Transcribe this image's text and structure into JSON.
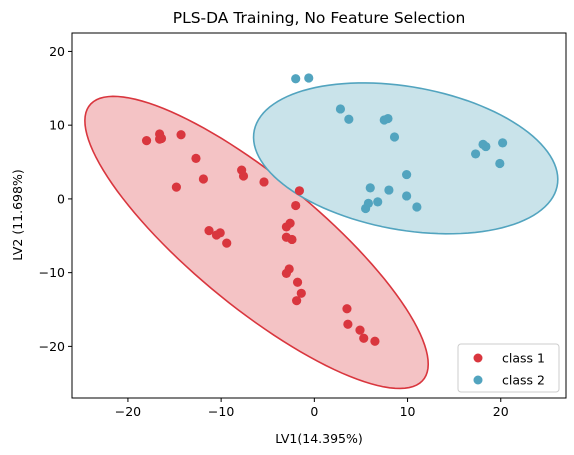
{
  "chart_data": {
    "type": "scatter",
    "title": "PLS-DA Training, No Feature Selection",
    "xlabel": "LV1(14.395%)",
    "ylabel": "LV2 (11.698%)",
    "xlim": [
      -26,
      27
    ],
    "ylim": [
      -27,
      22.5
    ],
    "xticks": [
      -20,
      -10,
      0,
      10,
      20
    ],
    "yticks": [
      -20,
      -10,
      0,
      10,
      20
    ],
    "grid": false,
    "legend_position": "bottom-right",
    "series": [
      {
        "name": "class 1",
        "color": "#d9363e",
        "ellipse": {
          "fill": "#f4c3c5",
          "edge": "#d9363e",
          "center": [
            -6.2,
            -5.9
          ],
          "semi_major": 25.9,
          "semi_minor": 7.8,
          "angle_deg": -47.5
        },
        "points": [
          [
            -18,
            7.9
          ],
          [
            -16.6,
            8.8
          ],
          [
            -16.6,
            8.1
          ],
          [
            -16.4,
            8.2
          ],
          [
            -14.3,
            8.7
          ],
          [
            -12.7,
            5.5
          ],
          [
            -11.9,
            2.7
          ],
          [
            -14.8,
            1.6
          ],
          [
            -7.8,
            3.9
          ],
          [
            -7.6,
            3.1
          ],
          [
            -5.4,
            2.3
          ],
          [
            -1.6,
            1.1
          ],
          [
            -2,
            -0.9
          ],
          [
            -11.3,
            -4.3
          ],
          [
            -10.5,
            -4.9
          ],
          [
            -10.1,
            -4.6
          ],
          [
            -9.4,
            -6
          ],
          [
            -3,
            -3.8
          ],
          [
            -2.6,
            -3.3
          ],
          [
            -3,
            -5.2
          ],
          [
            -2.4,
            -5.5
          ],
          [
            -3,
            -10.1
          ],
          [
            -2.7,
            -9.5
          ],
          [
            -1.8,
            -11.3
          ],
          [
            -1.4,
            -12.8
          ],
          [
            -1.9,
            -13.8
          ],
          [
            3.5,
            -14.9
          ],
          [
            3.6,
            -17
          ],
          [
            4.9,
            -17.8
          ],
          [
            5.3,
            -18.9
          ],
          [
            6.5,
            -19.3
          ]
        ]
      },
      {
        "name": "class 2",
        "color": "#52a4bf",
        "ellipse": {
          "fill": "#c9e3ea",
          "edge": "#52a4bf",
          "center": [
            9.8,
            5.5
          ],
          "semi_major": 16.7,
          "semi_minor": 9.6,
          "angle_deg": -15
        },
        "points": [
          [
            -2,
            16.3
          ],
          [
            -0.6,
            16.4
          ],
          [
            2.8,
            12.2
          ],
          [
            3.7,
            10.8
          ],
          [
            7.5,
            10.7
          ],
          [
            7.9,
            10.9
          ],
          [
            8.6,
            8.4
          ],
          [
            9.9,
            3.3
          ],
          [
            6,
            1.5
          ],
          [
            8,
            1.2
          ],
          [
            9.9,
            0.4
          ],
          [
            11,
            -1.1
          ],
          [
            5.8,
            -0.6
          ],
          [
            5.5,
            -1.3
          ],
          [
            6.8,
            -0.4
          ],
          [
            17.3,
            6.1
          ],
          [
            18.1,
            7.4
          ],
          [
            18.4,
            7.1
          ],
          [
            20.2,
            7.6
          ],
          [
            19.9,
            4.8
          ]
        ]
      }
    ]
  }
}
